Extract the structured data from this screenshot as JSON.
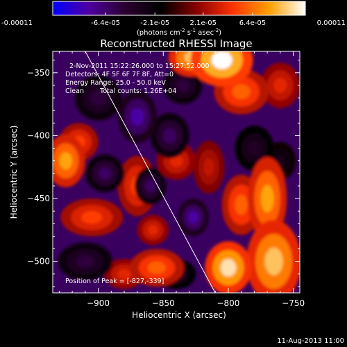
{
  "chart_data": {
    "type": "heatmap",
    "title": "Reconstructed RHESSI Image",
    "xlabel": "Heliocentric X (arcsec)",
    "ylabel": "Heliocentric Y (arcsec)",
    "xlim": [
      -935,
      -745
    ],
    "ylim": [
      -525,
      -333
    ],
    "x_ticks": [
      -900,
      -850,
      -800,
      -750
    ],
    "y_ticks": [
      -350,
      -400,
      -450,
      -500
    ],
    "colorbar": {
      "min": -0.00011,
      "max": 0.00011,
      "tick_values": [
        -0.00011,
        -6.4e-05,
        -2.1e-05,
        2.1e-05,
        6.4e-05,
        0.00011
      ],
      "tick_labels": [
        "-0.00011",
        "-6.4e-05",
        "-2.1e-05",
        "2.1e-05",
        "6.4e-05",
        "0.00011"
      ],
      "units_prefix": "(photons cm",
      "units_mid1": "s",
      "units_mid2": "asec",
      "units_sup1": "-2",
      "units_sup2": "-1",
      "units_sup3": "-2",
      "units_suffix": ")",
      "colors": [
        "#0000ff",
        "#5000a0",
        "#2a0030",
        "#000000",
        "#8a0000",
        "#ff3300",
        "#ffa000",
        "#ffffff"
      ]
    },
    "annotations": {
      "date_line": "2-Nov-2011 15:22:26.000 to 15:27:52.000",
      "detectors": "Detectors: 4F 5F 6F 7F 8F, Att=0",
      "energy": "Energy Range: 25.0 - 50.0 keV",
      "clean": "Clean",
      "total_counts": "Total counts: 1.26E+04",
      "peak_position": "Position of Peak = [-827,-339]"
    },
    "limb_line": {
      "x_start": -910,
      "y_start": -333,
      "x_end": -810,
      "y_end": -525
    },
    "sources": [
      {
        "x": -805,
        "y": -340,
        "value": 0.00011,
        "sx": 16,
        "sy": 14
      },
      {
        "x": -828,
        "y": -338,
        "value": 9e-05,
        "sx": 12,
        "sy": 10
      },
      {
        "x": -790,
        "y": -365,
        "value": 6e-05,
        "sx": 14,
        "sy": 12
      },
      {
        "x": -925,
        "y": -420,
        "value": 8e-05,
        "sx": 10,
        "sy": 14
      },
      {
        "x": -915,
        "y": -405,
        "value": 5e-05,
        "sx": 10,
        "sy": 10
      },
      {
        "x": -770,
        "y": -450,
        "value": 8e-05,
        "sx": 10,
        "sy": 22
      },
      {
        "x": -765,
        "y": -500,
        "value": 9e-05,
        "sx": 14,
        "sy": 22
      },
      {
        "x": -800,
        "y": -505,
        "value": 0.0001,
        "sx": 12,
        "sy": 14
      },
      {
        "x": -790,
        "y": -455,
        "value": 6e-05,
        "sx": 10,
        "sy": 16
      },
      {
        "x": -870,
        "y": -440,
        "value": 5e-05,
        "sx": 10,
        "sy": 16
      },
      {
        "x": -855,
        "y": -505,
        "value": 6e-05,
        "sx": 14,
        "sy": 10
      },
      {
        "x": -905,
        "y": -465,
        "value": 5e-05,
        "sx": 16,
        "sy": 10
      },
      {
        "x": -840,
        "y": -420,
        "value": 4e-05,
        "sx": 10,
        "sy": 10
      },
      {
        "x": -880,
        "y": -510,
        "value": 4e-05,
        "sx": 10,
        "sy": 8
      },
      {
        "x": -760,
        "y": -360,
        "value": 4e-05,
        "sx": 10,
        "sy": 12
      },
      {
        "x": -858,
        "y": -475,
        "value": 4e-05,
        "sx": 8,
        "sy": 8
      },
      {
        "x": -815,
        "y": -425,
        "value": 3e-05,
        "sx": 8,
        "sy": 14
      },
      {
        "x": -870,
        "y": -385,
        "value": -8e-05,
        "sx": 10,
        "sy": 14
      },
      {
        "x": -845,
        "y": -400,
        "value": -6e-05,
        "sx": 10,
        "sy": 12
      },
      {
        "x": -827,
        "y": -465,
        "value": -8e-05,
        "sx": 8,
        "sy": 10
      },
      {
        "x": -895,
        "y": -430,
        "value": -6e-05,
        "sx": 10,
        "sy": 10
      },
      {
        "x": -860,
        "y": -440,
        "value": -6e-05,
        "sx": 8,
        "sy": 10
      },
      {
        "x": -910,
        "y": -500,
        "value": -5e-05,
        "sx": 14,
        "sy": 10
      },
      {
        "x": -780,
        "y": -410,
        "value": -4e-05,
        "sx": 10,
        "sy": 12
      },
      {
        "x": -900,
        "y": -370,
        "value": -5e-05,
        "sx": 12,
        "sy": 12
      },
      {
        "x": -835,
        "y": -360,
        "value": -5e-05,
        "sx": 10,
        "sy": 10
      },
      {
        "x": -760,
        "y": -420,
        "value": -3e-05,
        "sx": 8,
        "sy": 10
      },
      {
        "x": -840,
        "y": -510,
        "value": -4e-05,
        "sx": 10,
        "sy": 8
      }
    ]
  },
  "footer": {
    "timestamp": "11-Aug-2013 11:00"
  }
}
